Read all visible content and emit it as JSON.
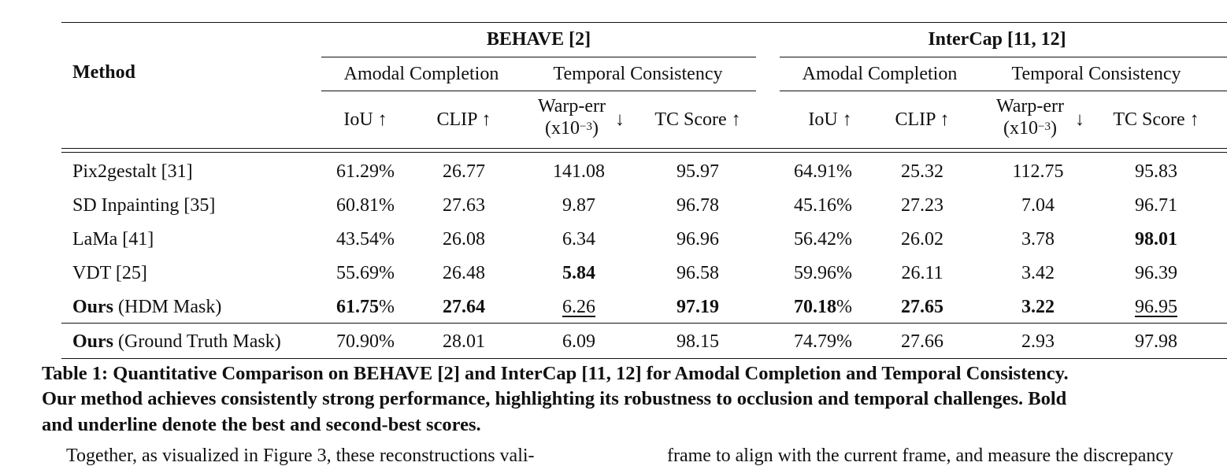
{
  "table": {
    "method_header": "Method",
    "groups": [
      {
        "name": "BEHAVE [2]",
        "subgroups": [
          "Amodal Completion",
          "Temporal Consistency"
        ],
        "columns": [
          "IoU ↑",
          "CLIP ↑",
          "Warp-err",
          "TC Score ↑"
        ]
      },
      {
        "name": "InterCap [11, 12]",
        "subgroups": [
          "Amodal Completion",
          "Temporal Consistency"
        ],
        "columns": [
          "IoU ↑",
          "CLIP ↑",
          "Warp-err",
          "TC Score ↑"
        ]
      }
    ],
    "warp_unit": "(x10",
    "warp_exp": "−3",
    "warp_close": ")",
    "warp_arrow": "↓",
    "rows": [
      {
        "method_bold": "",
        "method": "Pix2gestalt [31]",
        "values": [
          "61.29%",
          "26.77",
          "141.08",
          "95.97",
          "64.91%",
          "25.32",
          "112.75",
          "95.83"
        ]
      },
      {
        "method_bold": "",
        "method": "SD Inpainting [35]",
        "values": [
          "60.81%",
          "27.63",
          "9.87",
          "96.78",
          "45.16%",
          "27.23",
          "7.04",
          "96.71"
        ]
      },
      {
        "method_bold": "",
        "method": "LaMa [41]",
        "values": [
          "43.54%",
          "26.08",
          "6.34",
          "96.96",
          "56.42%",
          "26.02",
          "3.78",
          "98.01"
        ]
      },
      {
        "method_bold": "",
        "method": "VDT [25]",
        "values": [
          "55.69%",
          "26.48",
          "5.84",
          "96.58",
          "59.96%",
          "26.11",
          "3.42",
          "96.39"
        ]
      },
      {
        "method_bold": "Ours",
        "method": " (HDM Mask)",
        "values": [
          "61.75%",
          "27.64",
          "6.26",
          "97.19",
          "70.18%",
          "27.65",
          "3.22",
          "96.95"
        ]
      },
      {
        "method_bold": "Ours",
        "method": " (Ground Truth Mask)",
        "values": [
          "70.90%",
          "28.01",
          "6.09",
          "98.15",
          "74.79%",
          "27.66",
          "2.93",
          "97.98"
        ]
      }
    ]
  },
  "caption": {
    "line1": "Table 1: Quantitative Comparison on BEHAVE [2] and InterCap [11, 12] for Amodal Completion and Temporal Consistency.",
    "line2": "Our method achieves consistently strong performance, highlighting its robustness to occlusion and temporal challenges. Bold",
    "line3": "and underline denote the best and second-best scores."
  },
  "body": {
    "left": "Together, as visualized in Figure 3, these reconstructions vali-",
    "right": "frame to align with the current frame, and measure the discrepancy"
  }
}
